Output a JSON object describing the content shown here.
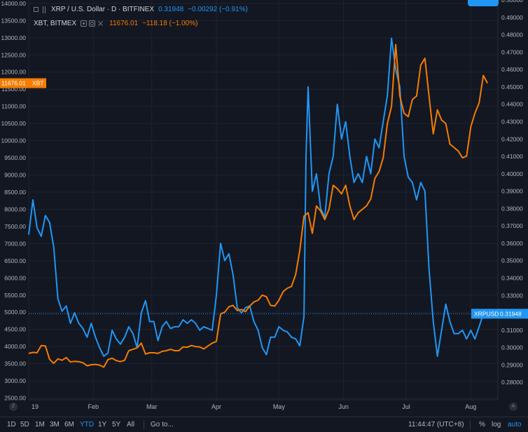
{
  "legend": {
    "main_symbol": "XRP / U.S. Dollar · D · BITFINEX",
    "main_price": "0.31948",
    "main_change": "−0.00292 (−0.91%)",
    "compare_symbol": "XBT, BITMEX",
    "compare_price": "11676.01",
    "compare_change": "−118.18 (−1.00%)"
  },
  "timeframes": [
    "1D",
    "5D",
    "1M",
    "3M",
    "6M",
    "YTD",
    "1Y",
    "5Y",
    "All"
  ],
  "active_timeframe": "YTD",
  "goto_label": "Go to...",
  "clock": "11:44:47 (UTC+8)",
  "scale_toggles": {
    "percent": "%",
    "log": "log",
    "auto": "auto"
  },
  "axis_buttons": {
    "left": "Z",
    "right": "A"
  },
  "colors": {
    "background": "#131722",
    "xrp": "#2196f3",
    "xbt": "#f57c00",
    "grid": "#1f2330",
    "axis_text": "#b2b5be"
  },
  "chart_data": {
    "type": "line",
    "x_unit": "date (2019)",
    "x_ticks": [
      {
        "label": "19",
        "date": "2019-01-01"
      },
      {
        "label": "Feb",
        "date": "2019-02-01"
      },
      {
        "label": "Mar",
        "date": "2019-03-01"
      },
      {
        "label": "Apr",
        "date": "2019-04-01"
      },
      {
        "label": "May",
        "date": "2019-05-01"
      },
      {
        "label": "Jun",
        "date": "2019-06-01"
      },
      {
        "label": "Jul",
        "date": "2019-07-01"
      },
      {
        "label": "Aug",
        "date": "2019-08-01"
      }
    ],
    "x_range": [
      "2019-01-01",
      "2019-08-14"
    ],
    "left_axis": {
      "range": [
        2450,
        14100
      ],
      "ticks": [
        "2500.00",
        "3000.00",
        "3500.00",
        "4000.00",
        "4500.00",
        "5000.00",
        "5500.00",
        "6000.00",
        "6500.00",
        "7000.00",
        "7500.00",
        "8000.00",
        "8500.00",
        "9000.00",
        "9500.00",
        "10000.00",
        "10500.00",
        "11000.00",
        "11500.00",
        "12000.00",
        "12500.00",
        "13000.00",
        "13500.00",
        "14000.00"
      ]
    },
    "right_axis": {
      "range": [
        0.27,
        0.5
      ],
      "ticks": [
        "0.28000",
        "0.29000",
        "0.30000",
        "0.31000",
        "0.32000",
        "0.33000",
        "0.34000",
        "0.35000",
        "0.36000",
        "0.37000",
        "0.38000",
        "0.39000",
        "0.40000",
        "0.41000",
        "0.42000",
        "0.43000",
        "0.44000",
        "0.45000",
        "0.46000",
        "0.47000",
        "0.48000",
        "0.49000",
        "0.50000"
      ]
    },
    "price_tags": {
      "xbt": {
        "label": "11676.01",
        "name": "XBT",
        "value": 11676.01
      },
      "xrp": {
        "label": "0.31948",
        "name": "XRPUSD",
        "value": 0.31948
      }
    },
    "series": [
      {
        "name": "XRPUSD",
        "axis": "right",
        "color": "#2196f3",
        "points": [
          [
            "2019-01-01",
            0.365
          ],
          [
            "2019-01-03",
            0.385
          ],
          [
            "2019-01-05",
            0.369
          ],
          [
            "2019-01-07",
            0.364
          ],
          [
            "2019-01-09",
            0.376
          ],
          [
            "2019-01-11",
            0.372
          ],
          [
            "2019-01-13",
            0.358
          ],
          [
            "2019-01-15",
            0.328
          ],
          [
            "2019-01-17",
            0.321
          ],
          [
            "2019-01-19",
            0.324
          ],
          [
            "2019-01-21",
            0.314
          ],
          [
            "2019-01-23",
            0.32
          ],
          [
            "2019-01-25",
            0.314
          ],
          [
            "2019-01-27",
            0.311
          ],
          [
            "2019-01-29",
            0.306
          ],
          [
            "2019-01-31",
            0.314
          ],
          [
            "2019-02-02",
            0.306
          ],
          [
            "2019-02-04",
            0.3
          ],
          [
            "2019-02-06",
            0.295
          ],
          [
            "2019-02-08",
            0.297
          ],
          [
            "2019-02-10",
            0.31
          ],
          [
            "2019-02-12",
            0.305
          ],
          [
            "2019-02-14",
            0.302
          ],
          [
            "2019-02-16",
            0.306
          ],
          [
            "2019-02-18",
            0.312
          ],
          [
            "2019-02-20",
            0.308
          ],
          [
            "2019-02-22",
            0.3
          ],
          [
            "2019-02-24",
            0.32
          ],
          [
            "2019-02-26",
            0.327
          ],
          [
            "2019-02-28",
            0.315
          ],
          [
            "2019-03-02",
            0.315
          ],
          [
            "2019-03-04",
            0.304
          ],
          [
            "2019-03-06",
            0.312
          ],
          [
            "2019-03-08",
            0.315
          ],
          [
            "2019-03-10",
            0.311
          ],
          [
            "2019-03-12",
            0.312
          ],
          [
            "2019-03-14",
            0.312
          ],
          [
            "2019-03-16",
            0.316
          ],
          [
            "2019-03-18",
            0.314
          ],
          [
            "2019-03-20",
            0.316
          ],
          [
            "2019-03-22",
            0.314
          ],
          [
            "2019-03-24",
            0.31
          ],
          [
            "2019-03-26",
            0.312
          ],
          [
            "2019-03-28",
            0.311
          ],
          [
            "2019-03-30",
            0.31
          ],
          [
            "2019-04-01",
            0.33
          ],
          [
            "2019-04-03",
            0.36
          ],
          [
            "2019-04-05",
            0.35
          ],
          [
            "2019-04-07",
            0.354
          ],
          [
            "2019-04-09",
            0.342
          ],
          [
            "2019-04-11",
            0.323
          ],
          [
            "2019-04-13",
            0.32
          ],
          [
            "2019-04-15",
            0.323
          ],
          [
            "2019-04-17",
            0.324
          ],
          [
            "2019-04-19",
            0.315
          ],
          [
            "2019-04-21",
            0.31
          ],
          [
            "2019-04-23",
            0.3
          ],
          [
            "2019-04-25",
            0.296
          ],
          [
            "2019-04-27",
            0.306
          ],
          [
            "2019-04-29",
            0.306
          ],
          [
            "2019-05-01",
            0.312
          ],
          [
            "2019-05-03",
            0.31
          ],
          [
            "2019-05-05",
            0.309
          ],
          [
            "2019-05-07",
            0.306
          ],
          [
            "2019-05-09",
            0.305
          ],
          [
            "2019-05-11",
            0.301
          ],
          [
            "2019-05-13",
            0.318
          ],
          [
            "2019-05-14",
            0.41
          ],
          [
            "2019-05-15",
            0.45
          ],
          [
            "2019-05-17",
            0.39
          ],
          [
            "2019-05-19",
            0.4
          ],
          [
            "2019-05-21",
            0.38
          ],
          [
            "2019-05-23",
            0.375
          ],
          [
            "2019-05-25",
            0.4
          ],
          [
            "2019-05-27",
            0.41
          ],
          [
            "2019-05-29",
            0.44
          ],
          [
            "2019-05-31",
            0.42
          ],
          [
            "2019-06-02",
            0.43
          ],
          [
            "2019-06-04",
            0.41
          ],
          [
            "2019-06-06",
            0.395
          ],
          [
            "2019-06-08",
            0.4
          ],
          [
            "2019-06-10",
            0.395
          ],
          [
            "2019-06-12",
            0.41
          ],
          [
            "2019-06-14",
            0.4
          ],
          [
            "2019-06-16",
            0.42
          ],
          [
            "2019-06-18",
            0.415
          ],
          [
            "2019-06-20",
            0.43
          ],
          [
            "2019-06-22",
            0.445
          ],
          [
            "2019-06-24",
            0.478
          ],
          [
            "2019-06-26",
            0.46
          ],
          [
            "2019-06-28",
            0.45
          ],
          [
            "2019-06-30",
            0.41
          ],
          [
            "2019-07-02",
            0.398
          ],
          [
            "2019-07-04",
            0.395
          ],
          [
            "2019-07-06",
            0.385
          ],
          [
            "2019-07-08",
            0.395
          ],
          [
            "2019-07-10",
            0.39
          ],
          [
            "2019-07-12",
            0.345
          ],
          [
            "2019-07-14",
            0.315
          ],
          [
            "2019-07-16",
            0.295
          ],
          [
            "2019-07-18",
            0.31
          ],
          [
            "2019-07-20",
            0.325
          ],
          [
            "2019-07-22",
            0.315
          ],
          [
            "2019-07-24",
            0.308
          ],
          [
            "2019-07-26",
            0.308
          ],
          [
            "2019-07-28",
            0.31
          ],
          [
            "2019-07-30",
            0.305
          ],
          [
            "2019-08-01",
            0.31
          ],
          [
            "2019-08-03",
            0.305
          ],
          [
            "2019-08-05",
            0.312
          ],
          [
            "2019-08-07",
            0.3195
          ]
        ]
      },
      {
        "name": "XBT",
        "axis": "left",
        "color": "#f57c00",
        "points": [
          [
            "2019-01-01",
            3800
          ],
          [
            "2019-01-03",
            3830
          ],
          [
            "2019-01-05",
            3820
          ],
          [
            "2019-01-07",
            4030
          ],
          [
            "2019-01-09",
            4020
          ],
          [
            "2019-01-11",
            3630
          ],
          [
            "2019-01-13",
            3510
          ],
          [
            "2019-01-15",
            3640
          ],
          [
            "2019-01-17",
            3600
          ],
          [
            "2019-01-19",
            3680
          ],
          [
            "2019-01-21",
            3550
          ],
          [
            "2019-01-23",
            3570
          ],
          [
            "2019-01-25",
            3560
          ],
          [
            "2019-01-27",
            3530
          ],
          [
            "2019-01-29",
            3440
          ],
          [
            "2019-01-31",
            3470
          ],
          [
            "2019-02-02",
            3480
          ],
          [
            "2019-02-04",
            3460
          ],
          [
            "2019-02-06",
            3400
          ],
          [
            "2019-02-08",
            3620
          ],
          [
            "2019-02-10",
            3660
          ],
          [
            "2019-02-12",
            3590
          ],
          [
            "2019-02-14",
            3560
          ],
          [
            "2019-02-16",
            3600
          ],
          [
            "2019-02-18",
            3880
          ],
          [
            "2019-02-20",
            3920
          ],
          [
            "2019-02-22",
            3960
          ],
          [
            "2019-02-24",
            4100
          ],
          [
            "2019-02-26",
            3780
          ],
          [
            "2019-02-28",
            3820
          ],
          [
            "2019-03-02",
            3820
          ],
          [
            "2019-03-04",
            3800
          ],
          [
            "2019-03-06",
            3860
          ],
          [
            "2019-03-08",
            3880
          ],
          [
            "2019-03-10",
            3920
          ],
          [
            "2019-03-12",
            3880
          ],
          [
            "2019-03-14",
            3880
          ],
          [
            "2019-03-16",
            3990
          ],
          [
            "2019-03-18",
            3980
          ],
          [
            "2019-03-20",
            4030
          ],
          [
            "2019-03-22",
            4000
          ],
          [
            "2019-03-24",
            3990
          ],
          [
            "2019-03-26",
            3930
          ],
          [
            "2019-03-28",
            4020
          ],
          [
            "2019-03-30",
            4100
          ],
          [
            "2019-04-01",
            4150
          ],
          [
            "2019-04-03",
            4950
          ],
          [
            "2019-04-05",
            5000
          ],
          [
            "2019-04-07",
            5160
          ],
          [
            "2019-04-09",
            5200
          ],
          [
            "2019-04-11",
            5050
          ],
          [
            "2019-04-13",
            5080
          ],
          [
            "2019-04-15",
            5020
          ],
          [
            "2019-04-17",
            5180
          ],
          [
            "2019-04-19",
            5300
          ],
          [
            "2019-04-21",
            5350
          ],
          [
            "2019-04-23",
            5500
          ],
          [
            "2019-04-25",
            5450
          ],
          [
            "2019-04-27",
            5200
          ],
          [
            "2019-04-29",
            5180
          ],
          [
            "2019-05-01",
            5350
          ],
          [
            "2019-05-03",
            5600
          ],
          [
            "2019-05-05",
            5700
          ],
          [
            "2019-05-07",
            5750
          ],
          [
            "2019-05-09",
            6100
          ],
          [
            "2019-05-11",
            6800
          ],
          [
            "2019-05-13",
            7800
          ],
          [
            "2019-05-15",
            7900
          ],
          [
            "2019-05-17",
            7300
          ],
          [
            "2019-05-19",
            8100
          ],
          [
            "2019-05-21",
            7950
          ],
          [
            "2019-05-23",
            7700
          ],
          [
            "2019-05-25",
            8000
          ],
          [
            "2019-05-27",
            8700
          ],
          [
            "2019-05-29",
            8600
          ],
          [
            "2019-05-31",
            8450
          ],
          [
            "2019-06-02",
            8700
          ],
          [
            "2019-06-04",
            8100
          ],
          [
            "2019-06-06",
            7700
          ],
          [
            "2019-06-08",
            7900
          ],
          [
            "2019-06-10",
            8000
          ],
          [
            "2019-06-12",
            8100
          ],
          [
            "2019-06-14",
            8300
          ],
          [
            "2019-06-16",
            8900
          ],
          [
            "2019-06-18",
            9100
          ],
          [
            "2019-06-20",
            9500
          ],
          [
            "2019-06-22",
            10500
          ],
          [
            "2019-06-24",
            11000
          ],
          [
            "2019-06-26",
            12800
          ],
          [
            "2019-06-28",
            11300
          ],
          [
            "2019-06-30",
            10800
          ],
          [
            "2019-07-02",
            10700
          ],
          [
            "2019-07-04",
            11200
          ],
          [
            "2019-07-06",
            11300
          ],
          [
            "2019-07-08",
            12200
          ],
          [
            "2019-07-10",
            12400
          ],
          [
            "2019-07-12",
            11300
          ],
          [
            "2019-07-14",
            10200
          ],
          [
            "2019-07-16",
            10900
          ],
          [
            "2019-07-18",
            10600
          ],
          [
            "2019-07-20",
            10500
          ],
          [
            "2019-07-22",
            9900
          ],
          [
            "2019-07-24",
            9800
          ],
          [
            "2019-07-26",
            9700
          ],
          [
            "2019-07-28",
            9500
          ],
          [
            "2019-07-30",
            9550
          ],
          [
            "2019-08-01",
            10400
          ],
          [
            "2019-08-03",
            10800
          ],
          [
            "2019-08-05",
            11100
          ],
          [
            "2019-08-07",
            11900
          ],
          [
            "2019-08-09",
            11676
          ]
        ]
      }
    ]
  }
}
